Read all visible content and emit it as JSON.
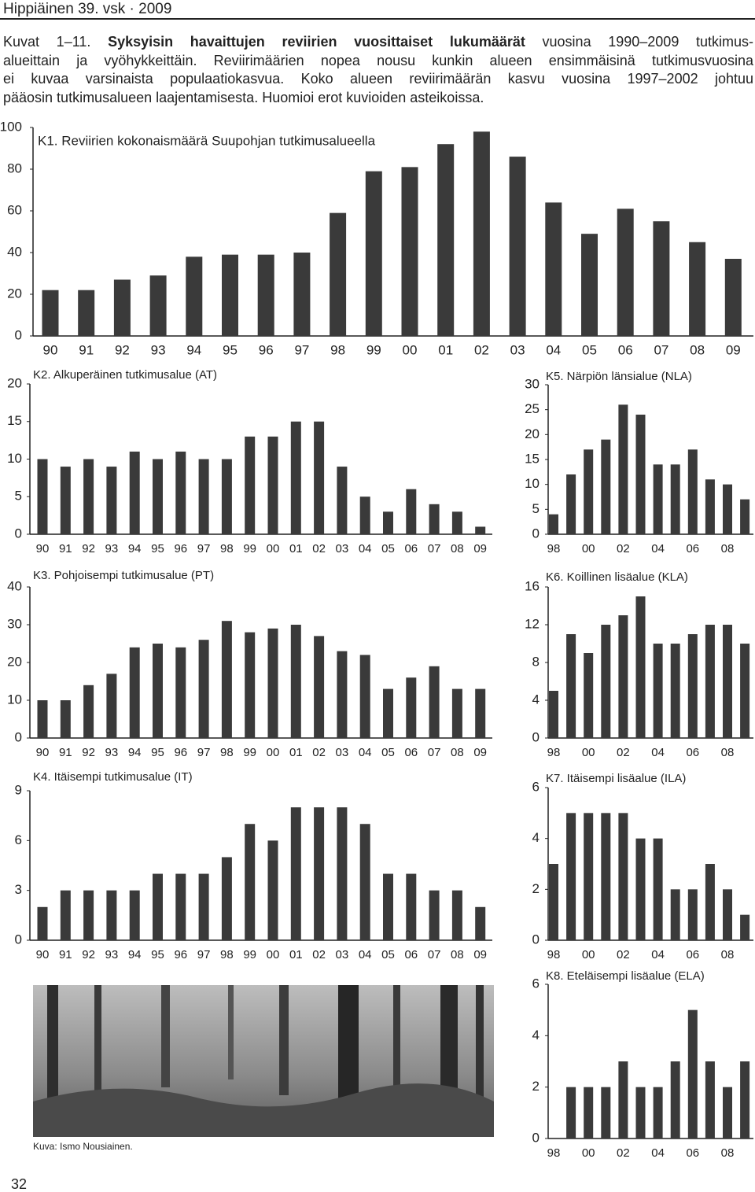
{
  "header": {
    "title": "Hippiäinen  39. vsk · 2009"
  },
  "caption": {
    "line1": [
      "Kuvat 1–11. ",
      "Syksyisin havaittujen reviirien vuosittaiset lukumäärät",
      " vuosina 1990–2009 tutkimus-"
    ],
    "lines": [
      "alueittain ja vyöhykkeittäin. Reviirimäärien nopea nousu kunkin alueen ensimmäisinä tutkimusvuosina",
      "ei kuvaa varsinaista populaatiokasvua. Koko alueen reviirimäärän kasvu vuosina 1997–2002 johtuu",
      "pääosin tutkimusalueen laajentamisesta. Huomioi erot kuvioiden asteikoissa."
    ]
  },
  "chart_data": [
    {
      "type": "bar",
      "title": "K1. Reviirien kokonaismäärä Suupohjan tutkimusalueella",
      "color": "#3a3a3a",
      "categories": [
        "90",
        "91",
        "92",
        "93",
        "94",
        "95",
        "96",
        "97",
        "98",
        "99",
        "00",
        "01",
        "02",
        "03",
        "04",
        "05",
        "06",
        "07",
        "08",
        "09"
      ],
      "values": [
        22,
        22,
        27,
        29,
        38,
        39,
        39,
        40,
        59,
        79,
        81,
        92,
        98,
        86,
        64,
        49,
        61,
        55,
        45,
        37
      ],
      "ylim": [
        0,
        100
      ],
      "yticks": [
        0,
        20,
        40,
        60,
        80,
        100
      ]
    },
    {
      "type": "bar",
      "title": "K2. Alkuperäinen tutkimusalue (AT)",
      "color": "#3a3a3a",
      "categories": [
        "90",
        "91",
        "92",
        "93",
        "94",
        "95",
        "96",
        "97",
        "98",
        "99",
        "00",
        "01",
        "02",
        "03",
        "04",
        "05",
        "06",
        "07",
        "08",
        "09"
      ],
      "values": [
        10,
        9,
        10,
        9,
        11,
        10,
        11,
        10,
        10,
        13,
        13,
        15,
        15,
        9,
        5,
        3,
        6,
        4,
        3,
        1
      ],
      "ylim": [
        0,
        20
      ],
      "yticks": [
        0,
        5,
        10,
        15,
        20
      ]
    },
    {
      "type": "bar",
      "title": "K3. Pohjoisempi tutkimusalue (PT)",
      "color": "#3a3a3a",
      "categories": [
        "90",
        "91",
        "92",
        "93",
        "94",
        "95",
        "96",
        "97",
        "98",
        "99",
        "00",
        "01",
        "02",
        "03",
        "04",
        "05",
        "06",
        "07",
        "08",
        "09"
      ],
      "values": [
        10,
        10,
        14,
        17,
        24,
        25,
        24,
        26,
        31,
        28,
        29,
        30,
        27,
        23,
        22,
        13,
        16,
        19,
        13,
        13
      ],
      "ylim": [
        0,
        40
      ],
      "yticks": [
        0,
        10,
        20,
        30,
        40
      ]
    },
    {
      "type": "bar",
      "title": "K4. Itäisempi tutkimusalue (IT)",
      "color": "#3a3a3a",
      "categories": [
        "90",
        "91",
        "92",
        "93",
        "94",
        "95",
        "96",
        "97",
        "98",
        "99",
        "00",
        "01",
        "02",
        "03",
        "04",
        "05",
        "06",
        "07",
        "08",
        "09"
      ],
      "values": [
        2,
        3,
        3,
        3,
        3,
        4,
        4,
        4,
        5,
        7,
        6,
        8,
        8,
        8,
        7,
        4,
        4,
        3,
        3,
        2
      ],
      "ylim": [
        0,
        9
      ],
      "yticks": [
        0,
        3,
        6,
        9
      ]
    },
    {
      "type": "bar",
      "title": "K5. Närpiön länsialue (NLA)",
      "color": "#3a3a3a",
      "categories": [
        "98",
        null,
        "00",
        null,
        "02",
        null,
        "04",
        null,
        "06",
        null,
        "08",
        null
      ],
      "values": [
        4,
        12,
        17,
        19,
        26,
        24,
        14,
        14,
        17,
        11,
        10,
        7
      ],
      "ylim": [
        0,
        30
      ],
      "yticks": [
        0,
        5,
        10,
        15,
        20,
        25,
        30
      ]
    },
    {
      "type": "bar",
      "title": "K6. Koillinen lisäalue (KLA)",
      "color": "#3a3a3a",
      "categories": [
        "98",
        null,
        "00",
        null,
        "02",
        null,
        "04",
        null,
        "06",
        null,
        "08",
        null
      ],
      "values": [
        5,
        11,
        9,
        12,
        13,
        15,
        10,
        10,
        11,
        12,
        12,
        10
      ],
      "ylim": [
        0,
        16
      ],
      "yticks": [
        0,
        4,
        8,
        12,
        16
      ]
    },
    {
      "type": "bar",
      "title": "K7. Itäisempi lisäalue (ILA)",
      "color": "#3a3a3a",
      "categories": [
        "98",
        null,
        "00",
        null,
        "02",
        null,
        "04",
        null,
        "06",
        null,
        "08",
        null
      ],
      "values": [
        3,
        5,
        5,
        5,
        5,
        4,
        4,
        2,
        2,
        3,
        2,
        1
      ],
      "ylim": [
        0,
        6
      ],
      "yticks": [
        0,
        2,
        4,
        6
      ]
    },
    {
      "type": "bar",
      "title": "K8. Eteläisempi lisäalue (ELA)",
      "color": "#3a3a3a",
      "categories": [
        "98",
        null,
        "00",
        null,
        "02",
        null,
        "04",
        null,
        "06",
        null,
        "08",
        null
      ],
      "values": [
        0,
        2,
        2,
        2,
        3,
        2,
        2,
        3,
        5,
        3,
        2,
        3
      ],
      "ylim": [
        0,
        6
      ],
      "yticks": [
        0,
        2,
        4,
        6
      ]
    }
  ],
  "photo_credit": "Kuva: Ismo Nousiainen.",
  "page_number": "32"
}
